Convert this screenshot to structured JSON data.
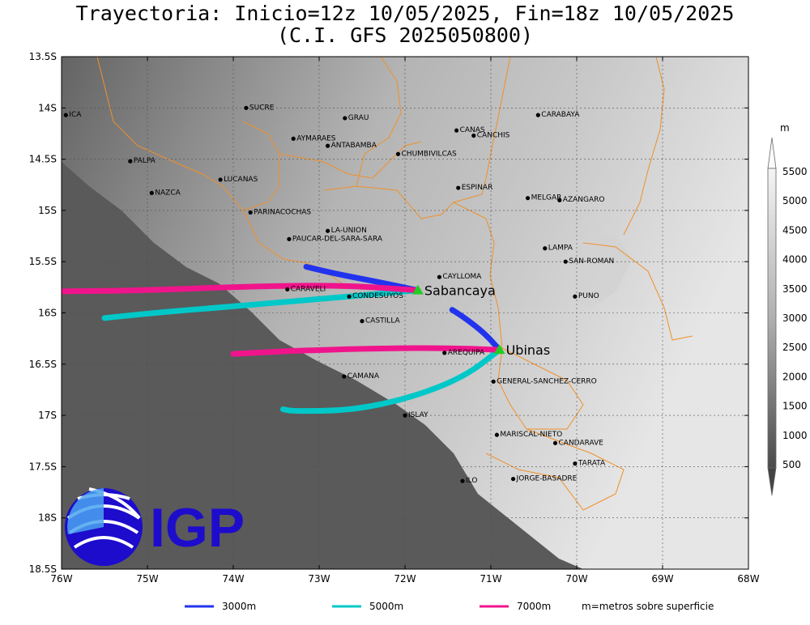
{
  "title": {
    "line1": "Trayectoria: Inicio=12z 10/05/2025, Fin=18z 10/05/2025",
    "line2": "(C.I. GFS 2025050800)"
  },
  "axes": {
    "lat_labels": [
      "13.5S",
      "14S",
      "14.5S",
      "15S",
      "15.5S",
      "16S",
      "16.5S",
      "17S",
      "17.5S",
      "18S",
      "18.5S"
    ],
    "lon_labels": [
      "76W",
      "75W",
      "74W",
      "73W",
      "72W",
      "71W",
      "70W",
      "69W",
      "68W"
    ]
  },
  "places": [
    {
      "name": "ICA",
      "lon": -75.95,
      "lat": -14.07
    },
    {
      "name": "SUCRE",
      "lon": -73.85,
      "lat": -14.0
    },
    {
      "name": "GRAU",
      "lon": -72.7,
      "lat": -14.1
    },
    {
      "name": "AYMARAES",
      "lon": -73.3,
      "lat": -14.3
    },
    {
      "name": "ANTABAMBA",
      "lon": -72.9,
      "lat": -14.37
    },
    {
      "name": "CANAS",
      "lon": -71.4,
      "lat": -14.22
    },
    {
      "name": "CANCHIS",
      "lon": -71.2,
      "lat": -14.27
    },
    {
      "name": "CARABAYA",
      "lon": -70.45,
      "lat": -14.07
    },
    {
      "name": "CHUMBIVILCAS",
      "lon": -72.08,
      "lat": -14.45
    },
    {
      "name": "PALPA",
      "lon": -75.2,
      "lat": -14.52
    },
    {
      "name": "LUCANAS",
      "lon": -74.15,
      "lat": -14.7
    },
    {
      "name": "NAZCA",
      "lon": -74.95,
      "lat": -14.83
    },
    {
      "name": "ESPINAR",
      "lon": -71.38,
      "lat": -14.78
    },
    {
      "name": "MELGAR",
      "lon": -70.57,
      "lat": -14.88
    },
    {
      "name": "AZANGARO",
      "lon": -70.2,
      "lat": -14.9
    },
    {
      "name": "PARINACOCHAS",
      "lon": -73.8,
      "lat": -15.02
    },
    {
      "name": "LA-UNION",
      "lon": -72.9,
      "lat": -15.2
    },
    {
      "name": "PAUCAR-DEL-SARA-SARA",
      "lon": -73.35,
      "lat": -15.28
    },
    {
      "name": "LAMPA",
      "lon": -70.37,
      "lat": -15.37
    },
    {
      "name": "SAN-ROMAN",
      "lon": -70.13,
      "lat": -15.5
    },
    {
      "name": "CAYLLOMA",
      "lon": -71.6,
      "lat": -15.65
    },
    {
      "name": "CARAVELI",
      "lon": -73.37,
      "lat": -15.77
    },
    {
      "name": "CONDESUYOS",
      "lon": -72.65,
      "lat": -15.84
    },
    {
      "name": "PUNO",
      "lon": -70.02,
      "lat": -15.84
    },
    {
      "name": "CASTILLA",
      "lon": -72.5,
      "lat": -16.08
    },
    {
      "name": "AREQUIPA",
      "lon": -71.54,
      "lat": -16.39
    },
    {
      "name": "CAMANA",
      "lon": -72.71,
      "lat": -16.62
    },
    {
      "name": "GENERAL-SANCHEZ-CERRO",
      "lon": -70.97,
      "lat": -16.67
    },
    {
      "name": "ISLAY",
      "lon": -72.0,
      "lat": -17.0
    },
    {
      "name": "MARISCAL-NIETO",
      "lon": -70.93,
      "lat": -17.19
    },
    {
      "name": "CANDARAVE",
      "lon": -70.25,
      "lat": -17.27
    },
    {
      "name": "TARATA",
      "lon": -70.02,
      "lat": -17.47
    },
    {
      "name": "ILO",
      "lon": -71.33,
      "lat": -17.64
    },
    {
      "name": "JORGE-BASADRE",
      "lon": -70.74,
      "lat": -17.62
    }
  ],
  "volcanoes": [
    {
      "name": "Sabancaya",
      "lon": -71.85,
      "lat": -15.78
    },
    {
      "name": "Ubinas",
      "lon": -70.9,
      "lat": -16.36
    }
  ],
  "trajectories": [
    {
      "volcano": "Sabancaya",
      "level": "3000m",
      "color": "#2233ee",
      "points": [
        [
          -71.85,
          -15.78
        ],
        [
          -72.3,
          -15.7
        ],
        [
          -72.8,
          -15.62
        ],
        [
          -73.15,
          -15.55
        ]
      ]
    },
    {
      "volcano": "Sabancaya",
      "level": "5000m",
      "color": "#00c8c8",
      "points": [
        [
          -71.85,
          -15.78
        ],
        [
          -72.8,
          -15.85
        ],
        [
          -73.9,
          -15.93
        ],
        [
          -74.8,
          -15.99
        ],
        [
          -75.5,
          -16.05
        ]
      ]
    },
    {
      "volcano": "Sabancaya",
      "level": "7000m",
      "color": "#f0148c",
      "points": [
        [
          -71.85,
          -15.78
        ],
        [
          -72.7,
          -15.73
        ],
        [
          -73.8,
          -15.74
        ],
        [
          -75.0,
          -15.78
        ],
        [
          -76.0,
          -15.79
        ]
      ]
    },
    {
      "volcano": "Ubinas",
      "level": "3000m",
      "color": "#2233ee",
      "points": [
        [
          -70.9,
          -16.36
        ],
        [
          -71.07,
          -16.2
        ],
        [
          -71.3,
          -16.05
        ],
        [
          -71.45,
          -15.97
        ]
      ]
    },
    {
      "volcano": "Ubinas",
      "level": "5000m",
      "color": "#00c8c8",
      "points": [
        [
          -70.9,
          -16.36
        ],
        [
          -71.3,
          -16.62
        ],
        [
          -71.9,
          -16.82
        ],
        [
          -72.6,
          -16.95
        ],
        [
          -73.3,
          -16.96
        ],
        [
          -73.42,
          -16.94
        ]
      ]
    },
    {
      "volcano": "Ubinas",
      "level": "7000m",
      "color": "#f0148c",
      "points": [
        [
          -70.9,
          -16.36
        ],
        [
          -71.6,
          -16.34
        ],
        [
          -72.5,
          -16.35
        ],
        [
          -73.3,
          -16.37
        ],
        [
          -74.0,
          -16.4
        ]
      ]
    }
  ],
  "colorbar": {
    "unit": "m",
    "labels": [
      "5500",
      "5000",
      "4500",
      "4000",
      "3500",
      "3000",
      "2500",
      "2000",
      "1500",
      "1000",
      "500"
    ]
  },
  "legend": {
    "items": [
      {
        "label": "3000m",
        "color": "#2233ee"
      },
      {
        "label": "5000m",
        "color": "#00c8c8"
      },
      {
        "label": "7000m",
        "color": "#f0148c"
      }
    ],
    "note": "m=metros sobre superficie"
  },
  "logo": {
    "text": "IGP"
  }
}
